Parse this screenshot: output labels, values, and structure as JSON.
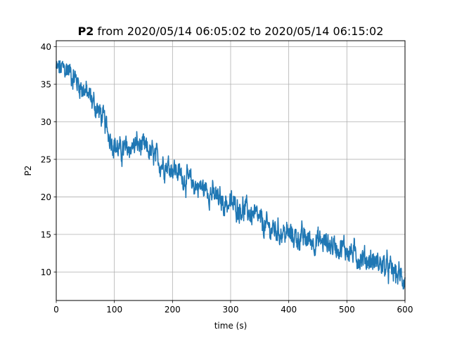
{
  "chart_data": {
    "type": "line",
    "title": {
      "bold": "P2",
      "rest": " from 2020/05/14 06:05:02 to 2020/05/14 06:15:02"
    },
    "xlabel": "time (s)",
    "ylabel": "P2",
    "xlim": [
      0,
      600
    ],
    "ylim": [
      6.2,
      40.8
    ],
    "xticks": [
      0,
      100,
      200,
      300,
      400,
      500,
      600
    ],
    "yticks": [
      10,
      15,
      20,
      25,
      30,
      35,
      40
    ],
    "grid": true,
    "series": [
      {
        "color": "#1f77b4",
        "trend_points": [
          [
            0,
            37
          ],
          [
            20,
            37
          ],
          [
            40,
            35
          ],
          [
            60,
            33
          ],
          [
            80,
            30.5
          ],
          [
            90,
            28.5
          ],
          [
            100,
            27
          ],
          [
            110,
            26
          ],
          [
            125,
            26.5
          ],
          [
            140,
            27
          ],
          [
            160,
            26
          ],
          [
            180,
            24.5
          ],
          [
            200,
            24
          ],
          [
            220,
            22.5
          ],
          [
            240,
            21.5
          ],
          [
            260,
            21
          ],
          [
            280,
            19.5
          ],
          [
            300,
            19
          ],
          [
            320,
            18.5
          ],
          [
            340,
            17.5
          ],
          [
            360,
            16
          ],
          [
            380,
            15.5
          ],
          [
            400,
            15
          ],
          [
            420,
            14.5
          ],
          [
            440,
            14.2
          ],
          [
            460,
            14
          ],
          [
            480,
            13.5
          ],
          [
            500,
            13
          ],
          [
            520,
            12
          ],
          [
            540,
            11.5
          ],
          [
            560,
            11
          ],
          [
            580,
            10
          ],
          [
            600,
            9
          ]
        ],
        "noise_amplitude": 1.1,
        "sample_count": 1200
      }
    ]
  }
}
